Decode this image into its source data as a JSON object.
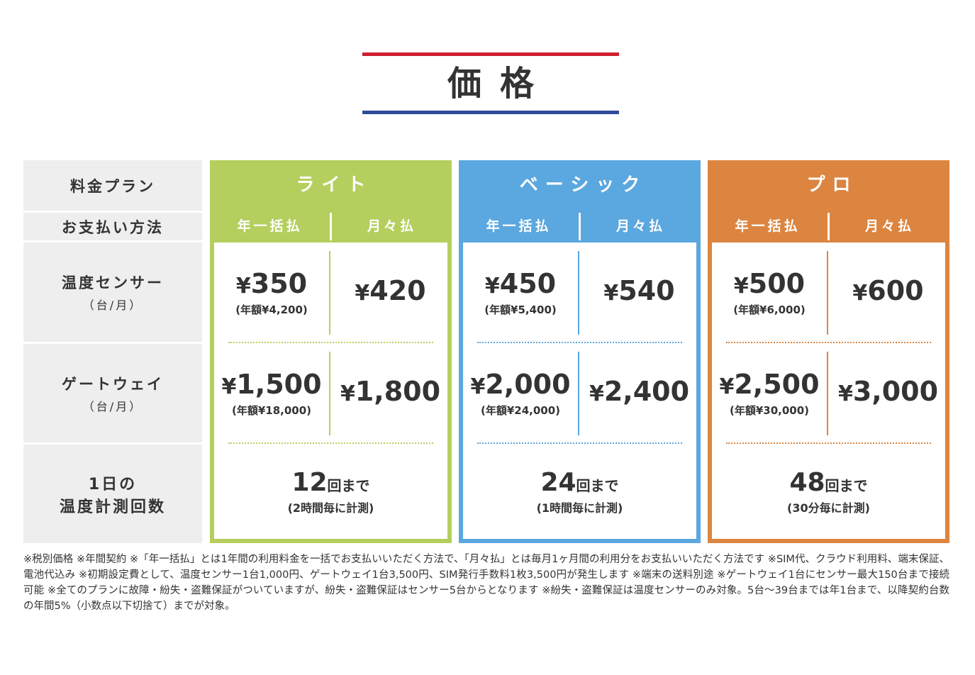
{
  "header": {
    "title": "価格",
    "bar_top_color": "#cf2030",
    "bar_bottom_color": "#2f4a9a"
  },
  "row_labels": {
    "plan": "料金プラン",
    "payment": "お支払い方法",
    "sensor": {
      "label": "温度センサー",
      "unit": "（台/月）"
    },
    "gateway": {
      "label": "ゲートウェイ",
      "unit": "（台/月）"
    },
    "count": {
      "line1": "1日の",
      "line2": "温度計測回数"
    }
  },
  "plans": [
    {
      "name": "ライト",
      "color": "#b5cf5e",
      "annual_label": "年一括払",
      "monthly_label": "月々払",
      "sensor_annual": "350",
      "sensor_annual_note": "(年額¥4,200)",
      "sensor_monthly": "420",
      "gateway_annual": "1,500",
      "gateway_annual_note": "(年額¥18,000)",
      "gateway_monthly": "1,800",
      "count_value": "12",
      "count_unit": "回まで",
      "count_note": "(2時間毎に計測)"
    },
    {
      "name": "ベーシック",
      "color": "#5ba7df",
      "annual_label": "年一括払",
      "monthly_label": "月々払",
      "sensor_annual": "450",
      "sensor_annual_note": "(年額¥5,400)",
      "sensor_monthly": "540",
      "gateway_annual": "2,000",
      "gateway_annual_note": "(年額¥24,000)",
      "gateway_monthly": "2,400",
      "count_value": "24",
      "count_unit": "回まで",
      "count_note": "(1時間毎に計測)"
    },
    {
      "name": "プロ",
      "color": "#dc8540",
      "annual_label": "年一括払",
      "monthly_label": "月々払",
      "sensor_annual": "500",
      "sensor_annual_note": "(年額¥6,000)",
      "sensor_monthly": "600",
      "gateway_annual": "2,500",
      "gateway_annual_note": "(年額¥30,000)",
      "gateway_monthly": "3,000",
      "count_value": "48",
      "count_unit": "回まで",
      "count_note": "(30分毎に計測)"
    }
  ],
  "currency_symbol": "¥",
  "notes": "※税別価格 ※年間契約 ※「年一括払」とは1年間の利用料金を一括でお支払いいただく方法で、「月々払」とは毎月1ヶ月間の利用分をお支払いいただく方法です ※SIM代、クラウド利用料、端末保証、電池代込み ※初期設定費として、温度センサー1台1,000円、ゲートウェイ1台3,500円、SIM発行手数料1枚3,500円が発生します ※端末の送料別途 ※ゲートウェイ1台にセンサー最大150台まで接続可能 ※全てのプランに故障・紛失・盗難保証がついていますが、紛失・盗難保証はセンサー5台からとなります ※紛失・盗難保証は温度センサーのみ対象。5台～39台までは年1台まで、以降契約台数の年間5%（小数点以下切捨て）までが対象。"
}
